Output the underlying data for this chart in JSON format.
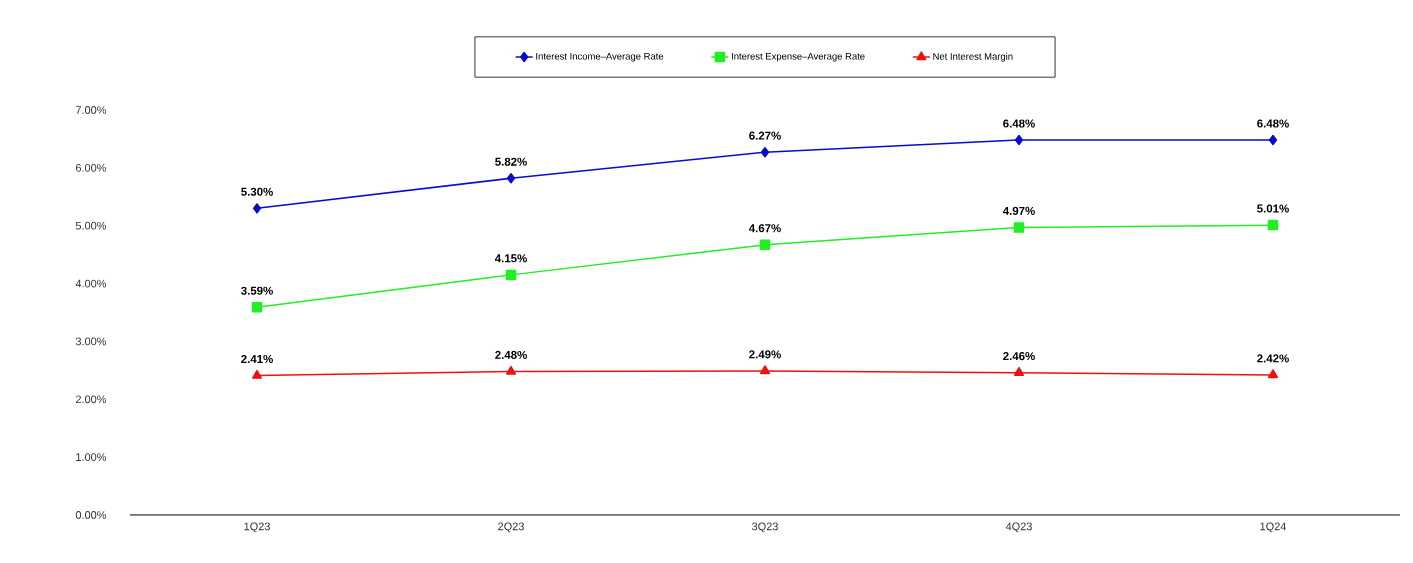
{
  "chart_data": {
    "type": "line",
    "categories": [
      "1Q23",
      "2Q23",
      "3Q23",
      "4Q23",
      "1Q24"
    ],
    "series": [
      {
        "name": "Interest Income–Average Rate",
        "color": "#0a0ad2",
        "marker": "diamond",
        "values": [
          5.3,
          5.82,
          6.27,
          6.48,
          6.48
        ],
        "value_labels": [
          "5.30%",
          "5.82%",
          "6.27%",
          "6.48%",
          "6.48%"
        ]
      },
      {
        "name": "Interest Expense–Average Rate",
        "color": "#22ee22",
        "marker": "square",
        "values": [
          3.59,
          4.15,
          4.67,
          4.97,
          5.01
        ],
        "value_labels": [
          "3.59%",
          "4.15%",
          "4.67%",
          "4.97%",
          "5.01%"
        ]
      },
      {
        "name": "Net Interest Margin",
        "color": "#ee1111",
        "marker": "triangle",
        "values": [
          2.41,
          2.48,
          2.49,
          2.46,
          2.42
        ],
        "value_labels": [
          "2.41%",
          "2.48%",
          "2.49%",
          "2.46%",
          "2.42%"
        ]
      }
    ],
    "ylim": [
      0,
      7
    ],
    "yticks": [
      {
        "value": 0,
        "label": "0.00%"
      },
      {
        "value": 1,
        "label": "1.00%"
      },
      {
        "value": 2,
        "label": "2.00%"
      },
      {
        "value": 3,
        "label": "3.00%"
      },
      {
        "value": 4,
        "label": "4.00%"
      },
      {
        "value": 5,
        "label": "5.00%"
      },
      {
        "value": 6,
        "label": "6.00%"
      },
      {
        "value": 7,
        "label": "7.00%"
      }
    ],
    "grid": false,
    "legend": "top",
    "line_style": "solid"
  }
}
